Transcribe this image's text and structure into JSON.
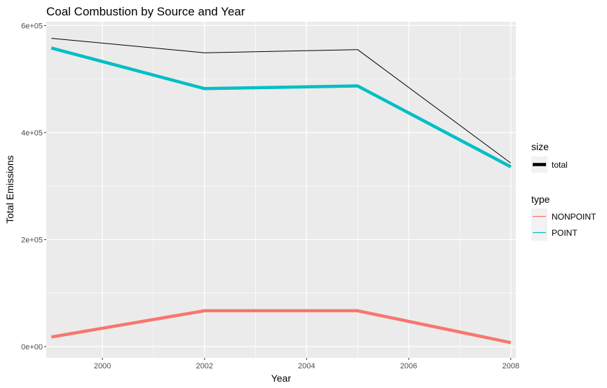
{
  "chart_data": {
    "type": "line",
    "title": "Coal Combustion by Source and Year",
    "xlabel": "Year",
    "ylabel": "Total Emissions",
    "x": [
      1999,
      2002,
      2005,
      2008
    ],
    "xlim": [
      1998.9,
      2008.1
    ],
    "ylim": [
      -21000,
      607000
    ],
    "x_ticks": [
      2000,
      2002,
      2004,
      2006,
      2008
    ],
    "x_tick_labels": [
      "2000",
      "2002",
      "2004",
      "2006",
      "2008"
    ],
    "y_ticks": [
      0,
      200000,
      400000,
      600000
    ],
    "y_tick_labels": [
      "0e+00",
      "2e+05",
      "4e+05",
      "6e+05"
    ],
    "grid": true,
    "background_color": "#ebebeb",
    "series": [
      {
        "name": "NONPOINT",
        "values": [
          18000,
          67000,
          67000,
          7500
        ],
        "color": "#f8766d",
        "legend": "type"
      },
      {
        "name": "POINT",
        "values": [
          558000,
          482000,
          487000,
          336000
        ],
        "color": "#00bfc4",
        "legend": "type"
      },
      {
        "name": "total",
        "values": [
          576000,
          549000,
          555000,
          343000
        ],
        "color": "#000000",
        "legend": "size"
      }
    ],
    "legends": [
      {
        "title": "size",
        "entries": [
          "total"
        ]
      },
      {
        "title": "type",
        "entries": [
          "NONPOINT",
          "POINT"
        ]
      }
    ],
    "legend_position": "right"
  }
}
